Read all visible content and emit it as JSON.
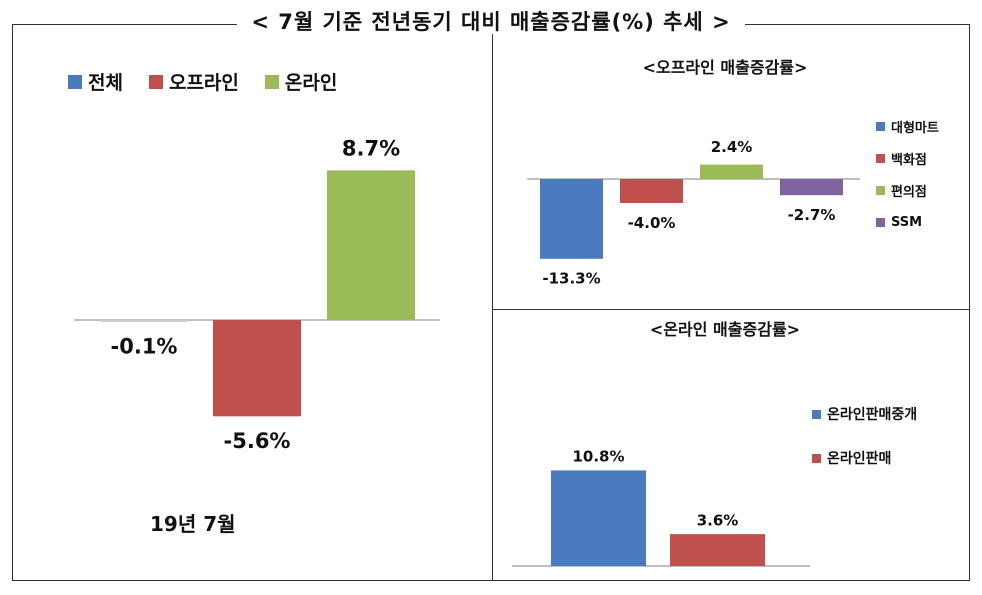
{
  "title": "< 7월 기준 전년동기 대비 매출증감률(%) 추세 >",
  "caption": "19년 7월",
  "colors": {
    "blue": "#4a7bbf",
    "red": "#c0504d",
    "green": "#9bbb59",
    "purple": "#8064a2",
    "axis": "#bfbfbf"
  },
  "chart_data": [
    {
      "type": "bar",
      "title": "",
      "categories": [
        "전체",
        "오프라인",
        "온라인"
      ],
      "values": [
        -0.1,
        -5.6,
        8.7
      ],
      "data_labels": [
        "-0.1%",
        "-5.6%",
        "8.7%"
      ],
      "legend": [
        "전체",
        "오프라인",
        "온라인"
      ],
      "legend_placement": "top",
      "ylim": [
        -6,
        9
      ],
      "grid": false
    },
    {
      "type": "bar",
      "title": "<오프라인 매출증감률>",
      "categories": [
        "대형마트",
        "백화점",
        "편의점",
        "SSM"
      ],
      "values": [
        -13.3,
        -4.0,
        2.4,
        -2.7
      ],
      "data_labels": [
        "-13.3%",
        "-4.0%",
        "2.4%",
        "-2.7%"
      ],
      "legend": [
        "대형마트",
        "백화점",
        "편의점",
        "SSM"
      ],
      "legend_placement": "right",
      "ylim": [
        -14,
        3
      ],
      "grid": false
    },
    {
      "type": "bar",
      "title": "<온라인 매출증감률>",
      "categories": [
        "온라인판매중개",
        "온라인판매"
      ],
      "values": [
        10.8,
        3.6
      ],
      "data_labels": [
        "10.8%",
        "3.6%"
      ],
      "legend": [
        "온라인판매중개",
        "온라인판매"
      ],
      "legend_placement": "right",
      "ylim": [
        0,
        12
      ],
      "grid": false
    }
  ]
}
